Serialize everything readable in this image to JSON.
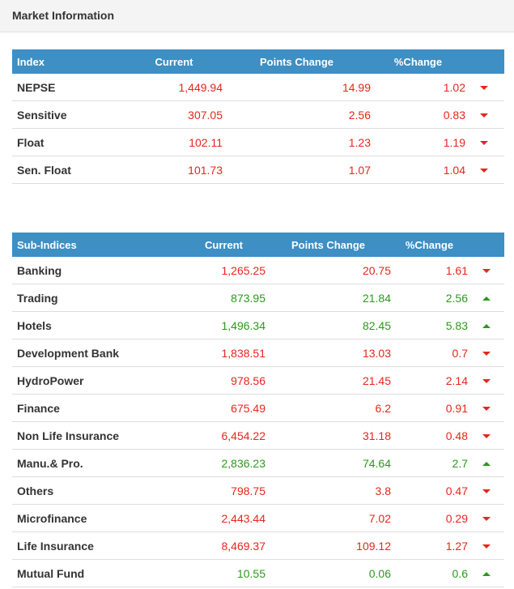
{
  "header": {
    "title": "Market Information"
  },
  "index_table": {
    "columns": [
      "Index",
      "Current",
      "Points Change",
      "%Change"
    ],
    "rows": [
      {
        "name": "NEPSE",
        "current": "1,449.94",
        "points": "14.99",
        "pct": "1.02",
        "dir": "down"
      },
      {
        "name": "Sensitive",
        "current": "307.05",
        "points": "2.56",
        "pct": "0.83",
        "dir": "down"
      },
      {
        "name": "Float",
        "current": "102.11",
        "points": "1.23",
        "pct": "1.19",
        "dir": "down"
      },
      {
        "name": "Sen. Float",
        "current": "101.73",
        "points": "1.07",
        "pct": "1.04",
        "dir": "down"
      }
    ]
  },
  "sub_table": {
    "columns": [
      "Sub-Indices",
      "Current",
      "Points Change",
      "%Change"
    ],
    "rows": [
      {
        "name": "Banking",
        "current": "1,265.25",
        "points": "20.75",
        "pct": "1.61",
        "dir": "down"
      },
      {
        "name": "Trading",
        "current": "873.95",
        "points": "21.84",
        "pct": "2.56",
        "dir": "up"
      },
      {
        "name": "Hotels",
        "current": "1,496.34",
        "points": "82.45",
        "pct": "5.83",
        "dir": "up"
      },
      {
        "name": "Development Bank",
        "current": "1,838.51",
        "points": "13.03",
        "pct": "0.7",
        "dir": "down"
      },
      {
        "name": "HydroPower",
        "current": "978.56",
        "points": "21.45",
        "pct": "2.14",
        "dir": "down"
      },
      {
        "name": "Finance",
        "current": "675.49",
        "points": "6.2",
        "pct": "0.91",
        "dir": "down"
      },
      {
        "name": "Non Life Insurance",
        "current": "6,454.22",
        "points": "31.18",
        "pct": "0.48",
        "dir": "down"
      },
      {
        "name": "Manu.& Pro.",
        "current": "2,836.23",
        "points": "74.64",
        "pct": "2.7",
        "dir": "up"
      },
      {
        "name": "Others",
        "current": "798.75",
        "points": "3.8",
        "pct": "0.47",
        "dir": "down"
      },
      {
        "name": "Microfinance",
        "current": "2,443.44",
        "points": "7.02",
        "pct": "0.29",
        "dir": "down"
      },
      {
        "name": "Life Insurance",
        "current": "8,469.37",
        "points": "109.12",
        "pct": "1.27",
        "dir": "down"
      },
      {
        "name": "Mutual Fund",
        "current": "10.55",
        "points": "0.06",
        "pct": "0.6",
        "dir": "up"
      }
    ]
  },
  "colors": {
    "header_bg": "#3d8fc4",
    "down": "#e8251b",
    "up": "#2a9a1a"
  }
}
